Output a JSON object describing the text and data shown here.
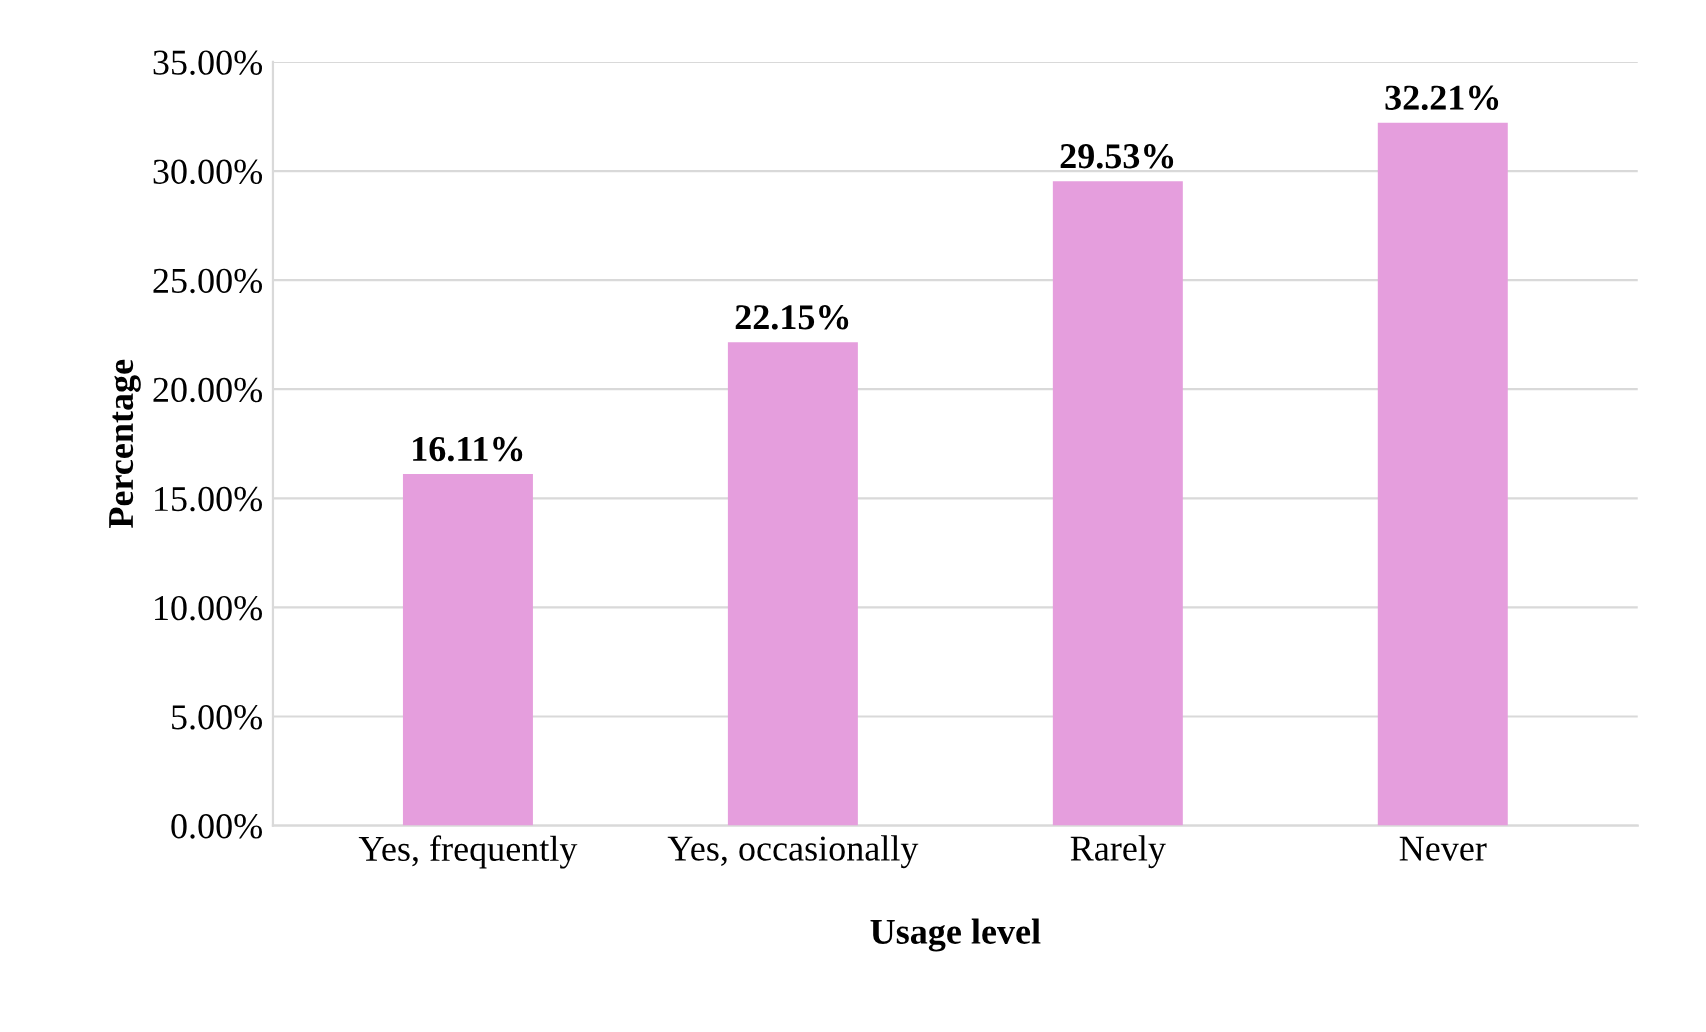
{
  "chart_data": {
    "type": "bar",
    "xlabel": "Usage level",
    "ylabel": "Percentage",
    "categories": [
      "Yes, frequently",
      "Yes, occasionally",
      "Rarely",
      "Never"
    ],
    "values": [
      16.11,
      22.15,
      29.53,
      32.21
    ],
    "value_labels": [
      "16.11%",
      "22.15%",
      "29.53%",
      "32.21%"
    ],
    "color": "#e59edd",
    "ylim": [
      0,
      35
    ],
    "yticks": [
      {
        "value": 0,
        "label": "0.00%"
      },
      {
        "value": 5,
        "label": "5.00%"
      },
      {
        "value": 10,
        "label": "10.00%"
      },
      {
        "value": 15,
        "label": "15.00%"
      },
      {
        "value": 20,
        "label": "20.00%"
      },
      {
        "value": 25,
        "label": "25.00%"
      },
      {
        "value": 30,
        "label": "30.00%"
      },
      {
        "value": 35,
        "label": "35.00%"
      }
    ],
    "grid": "y",
    "legend": false
  }
}
